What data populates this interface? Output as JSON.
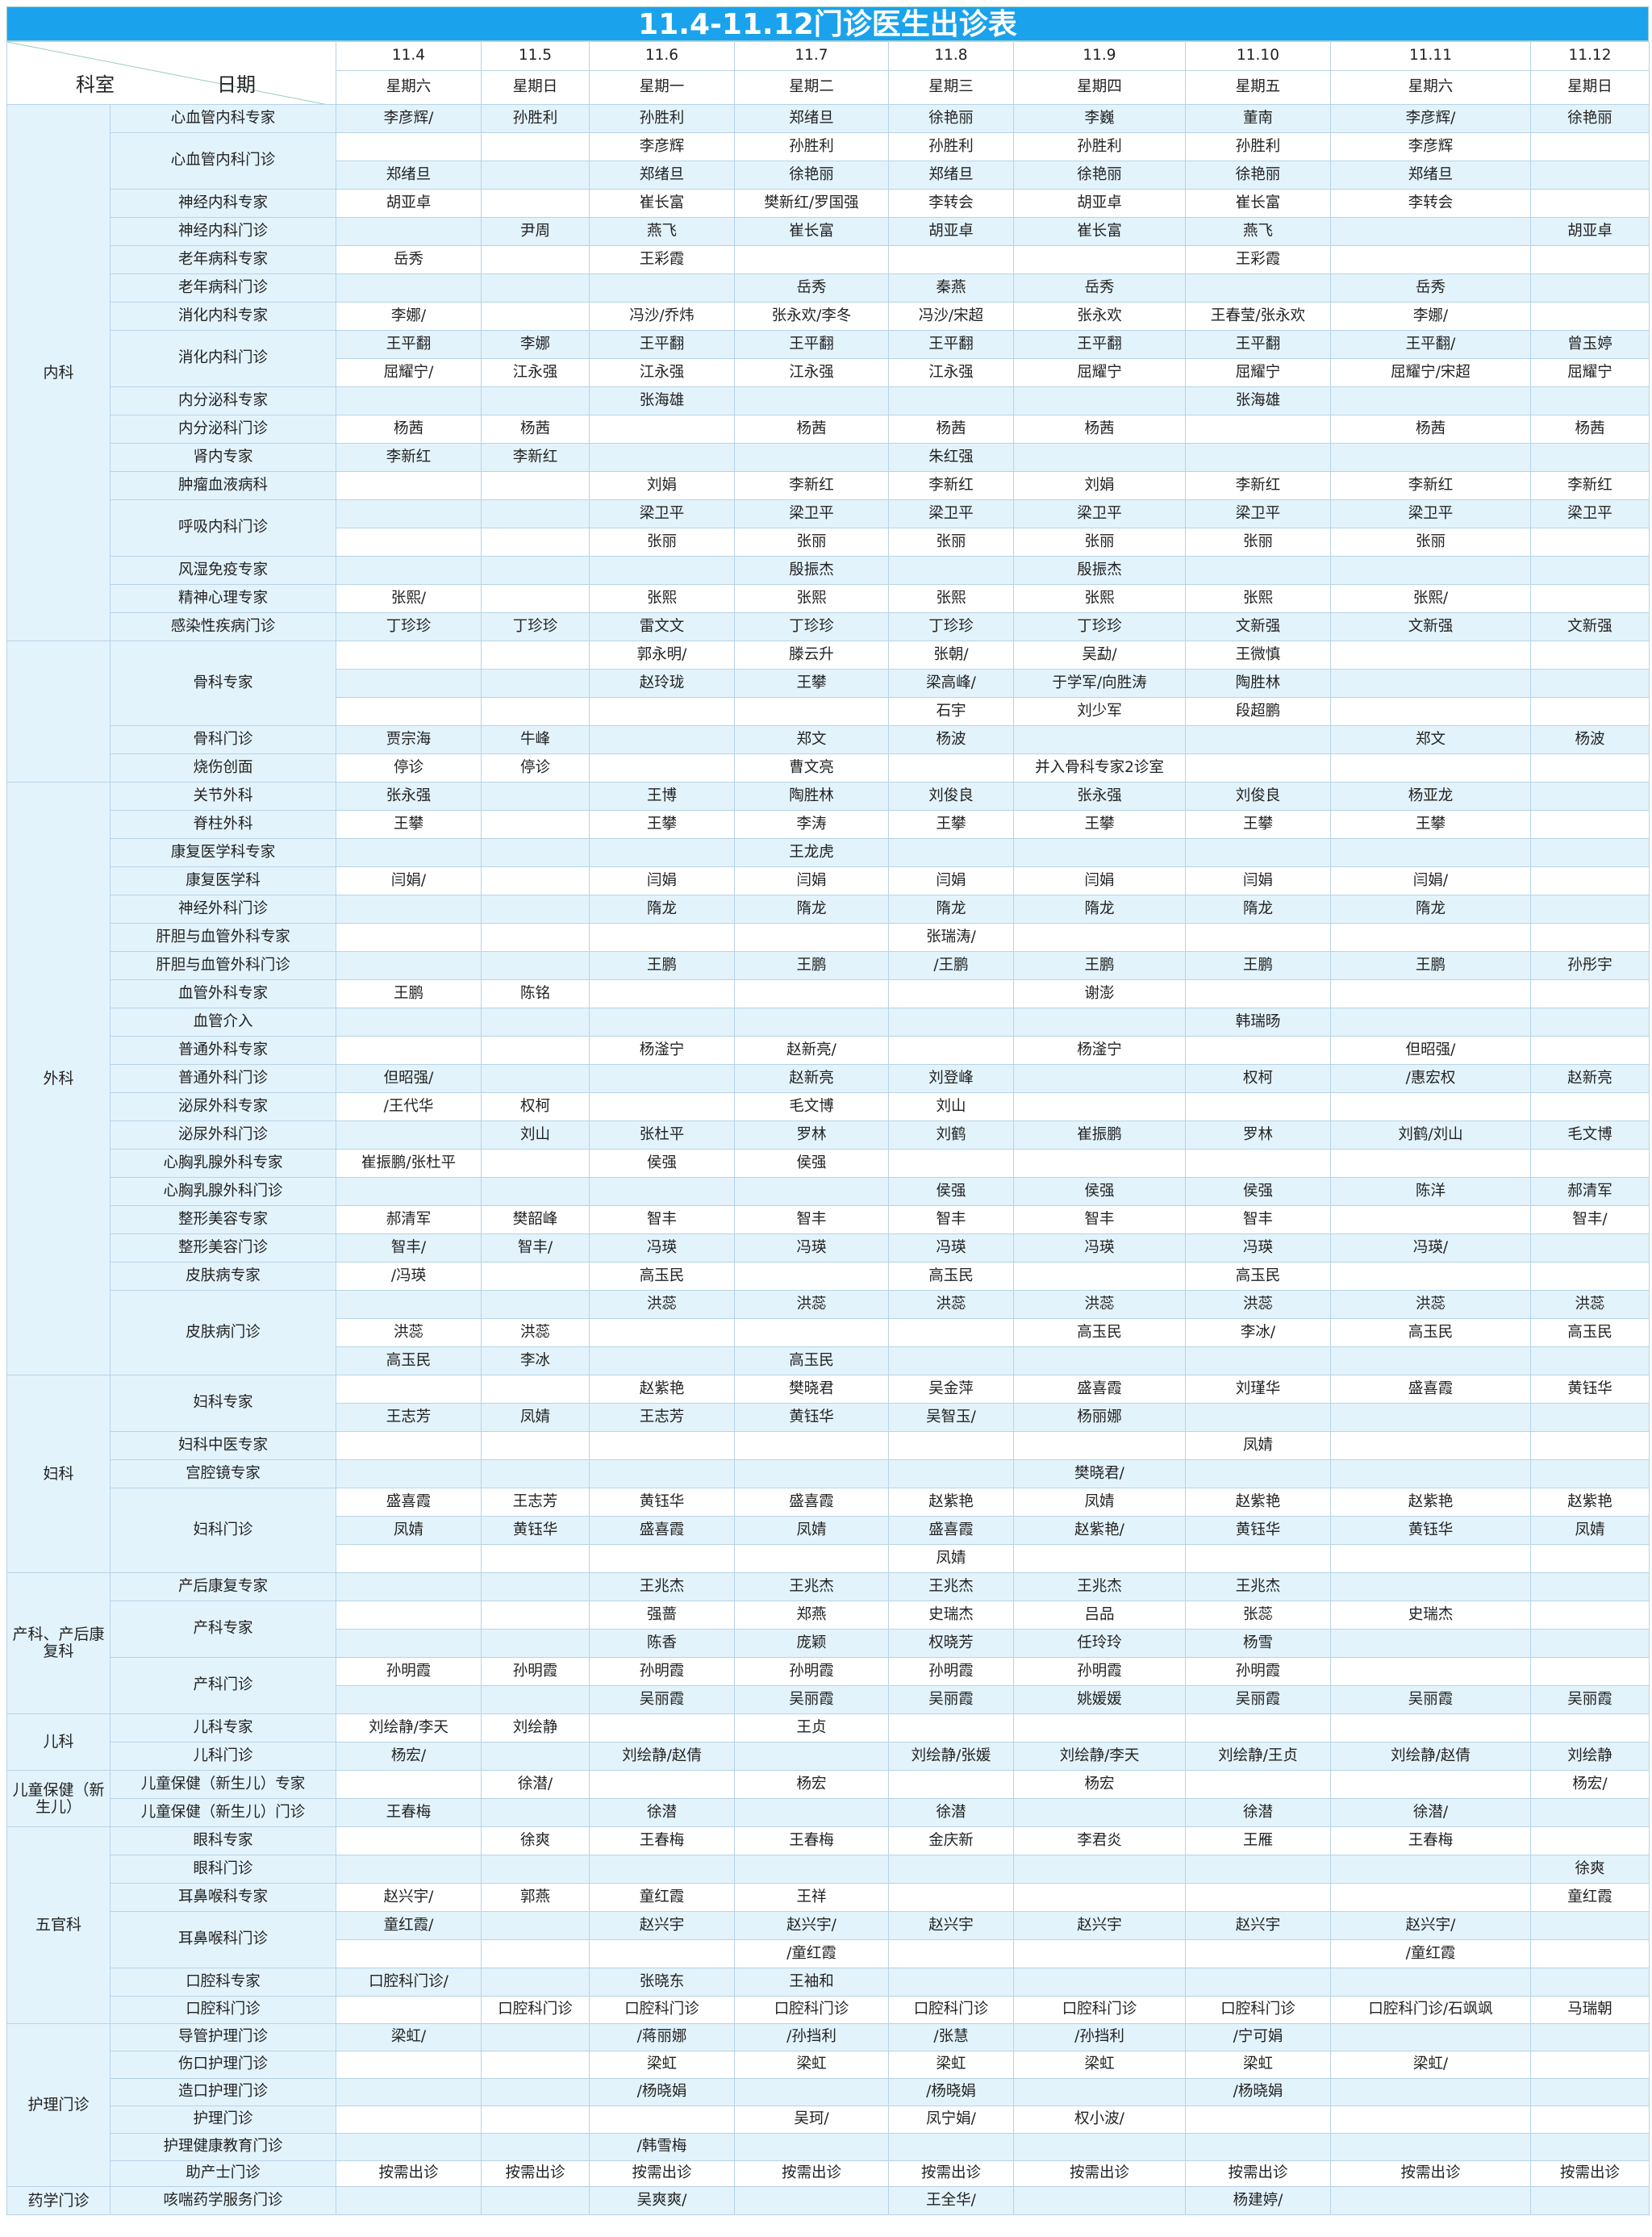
{
  "title": "11.4-11.12门诊医生出诊表",
  "header": {
    "dept_label": "科室",
    "date_label": "日期",
    "dates": [
      "11.4",
      "11.5",
      "11.6",
      "11.7",
      "11.8",
      "11.9",
      "11.10",
      "11.11",
      "11.12"
    ],
    "weekdays": [
      "星期六",
      "星期日",
      "星期一",
      "星期二",
      "星期三",
      "星期四",
      "星期五",
      "星期六",
      "星期日"
    ]
  },
  "groups": [
    {
      "dept": "内科",
      "rows": [
        {
          "sub": "心血管内科专家",
          "cells": [
            "李彦辉/",
            "孙胜利",
            "孙胜利",
            "郑绪旦",
            "徐艳丽",
            "李巍",
            "董南",
            "李彦辉/",
            "徐艳丽"
          ]
        },
        {
          "sub": "心血管内科门诊",
          "span": 2,
          "cells": [
            "",
            "",
            "李彦辉",
            "孙胜利",
            "孙胜利",
            "孙胜利",
            "孙胜利",
            "李彦辉",
            ""
          ]
        },
        {
          "cells": [
            "郑绪旦",
            "",
            "郑绪旦",
            "徐艳丽",
            "郑绪旦",
            "徐艳丽",
            "徐艳丽",
            "郑绪旦",
            ""
          ]
        },
        {
          "sub": "神经内科专家",
          "cells": [
            "胡亚卓",
            "",
            "崔长富",
            "樊新红/罗国强",
            "李转会",
            "胡亚卓",
            "崔长富",
            "李转会",
            ""
          ]
        },
        {
          "sub": "神经内科门诊",
          "cells": [
            "",
            "尹周",
            "燕飞",
            "崔长富",
            "胡亚卓",
            "崔长富",
            "燕飞",
            "",
            "胡亚卓"
          ]
        },
        {
          "sub": "老年病科专家",
          "cells": [
            "岳秀",
            "",
            "王彩霞",
            "",
            "",
            "",
            "王彩霞",
            "",
            ""
          ]
        },
        {
          "sub": "老年病科门诊",
          "cells": [
            "",
            "",
            "",
            "岳秀",
            "秦燕",
            "岳秀",
            "",
            "岳秀",
            ""
          ]
        },
        {
          "sub": "消化内科专家",
          "cells": [
            "李娜/",
            "",
            "冯沙/乔炜",
            "张永欢/李冬",
            "冯沙/宋超",
            "张永欢",
            "王春莹/张永欢",
            "李娜/",
            ""
          ]
        },
        {
          "sub": "消化内科门诊",
          "span": 2,
          "cells": [
            "王平翻",
            "李娜",
            "王平翻",
            "王平翻",
            "王平翻",
            "王平翻",
            "王平翻",
            "王平翻/",
            "曾玉婷"
          ]
        },
        {
          "cells": [
            "屈耀宁/",
            "江永强",
            "江永强",
            "江永强",
            "江永强",
            "屈耀宁",
            "屈耀宁",
            "屈耀宁/宋超",
            "屈耀宁"
          ]
        },
        {
          "sub": "内分泌科专家",
          "cells": [
            "",
            "",
            "张海雄",
            "",
            "",
            "",
            "张海雄",
            "",
            ""
          ]
        },
        {
          "sub": "内分泌科门诊",
          "cells": [
            "杨茜",
            "杨茜",
            "",
            "杨茜",
            "杨茜",
            "杨茜",
            "",
            "杨茜",
            "杨茜"
          ]
        },
        {
          "sub": "肾内专家",
          "cells": [
            "李新红",
            "李新红",
            "",
            "",
            "朱红强",
            "",
            "",
            "",
            ""
          ]
        },
        {
          "sub": "肿瘤血液病科",
          "cells": [
            "",
            "",
            "刘娟",
            "李新红",
            "李新红",
            "刘娟",
            "李新红",
            "李新红",
            "李新红"
          ]
        },
        {
          "sub": "呼吸内科门诊",
          "span": 2,
          "cells": [
            "",
            "",
            "梁卫平",
            "梁卫平",
            "梁卫平",
            "梁卫平",
            "梁卫平",
            "梁卫平",
            "梁卫平"
          ]
        },
        {
          "cells": [
            "",
            "",
            "张丽",
            "张丽",
            "张丽",
            "张丽",
            "张丽",
            "张丽",
            ""
          ]
        },
        {
          "sub": "风湿免疫专家",
          "cells": [
            "",
            "",
            "",
            "殷振杰",
            "",
            "殷振杰",
            "",
            "",
            ""
          ]
        },
        {
          "sub": "精神心理专家",
          "cells": [
            "张熙/",
            "",
            "张熙",
            "张熙",
            "张熙",
            "张熙",
            "张熙",
            "张熙/",
            ""
          ]
        },
        {
          "sub": "感染性疾病门诊",
          "cells": [
            "丁珍珍",
            "丁珍珍",
            "雷文文",
            "丁珍珍",
            "丁珍珍",
            "丁珍珍",
            "文新强",
            "文新强",
            "文新强"
          ]
        }
      ]
    },
    {
      "dept": "",
      "rows": [
        {
          "sub": "骨科专家",
          "span": 3,
          "cells": [
            "",
            "",
            "郭永明/",
            "滕云升",
            "张朝/",
            "吴勐/",
            "王微慎",
            "",
            ""
          ]
        },
        {
          "cells": [
            "",
            "",
            "赵玲珑",
            "王攀",
            "梁高峰/",
            "于学军/向胜涛",
            "陶胜林",
            "",
            ""
          ]
        },
        {
          "cells": [
            "",
            "",
            "",
            "",
            "石宇",
            "刘少军",
            "段超鹏",
            "",
            ""
          ]
        },
        {
          "sub": "骨科门诊",
          "cells": [
            "贾宗海",
            "牛峰",
            "",
            "郑文",
            "杨波",
            "",
            "",
            "郑文",
            "杨波"
          ]
        },
        {
          "sub": "烧伤创面",
          "cells": [
            "停诊",
            "停诊",
            "",
            "曹文亮",
            "",
            "并入骨科专家2诊室",
            "",
            "",
            ""
          ]
        }
      ]
    },
    {
      "dept": "外科",
      "rows": [
        {
          "sub": "关节外科",
          "cells": [
            "张永强",
            "",
            "王博",
            "陶胜林",
            "刘俊良",
            "张永强",
            "刘俊良",
            "杨亚龙",
            ""
          ]
        },
        {
          "sub": "脊柱外科",
          "cells": [
            "王攀",
            "",
            "王攀",
            "李涛",
            "王攀",
            "王攀",
            "王攀",
            "王攀",
            ""
          ]
        },
        {
          "sub": "康复医学科专家",
          "cells": [
            "",
            "",
            "",
            "王龙虎",
            "",
            "",
            "",
            "",
            ""
          ]
        },
        {
          "sub": "康复医学科",
          "cells": [
            "闫娟/",
            "",
            "闫娟",
            "闫娟",
            "闫娟",
            "闫娟",
            "闫娟",
            "闫娟/",
            ""
          ]
        },
        {
          "sub": "神经外科门诊",
          "cells": [
            "",
            "",
            "隋龙",
            "隋龙",
            "隋龙",
            "隋龙",
            "隋龙",
            "隋龙",
            ""
          ]
        },
        {
          "sub": "肝胆与血管外科专家",
          "cells": [
            "",
            "",
            "",
            "",
            "张瑞涛/",
            "",
            "",
            "",
            ""
          ]
        },
        {
          "sub": "肝胆与血管外科门诊",
          "cells": [
            "",
            "",
            "王鹏",
            "王鹏",
            "/王鹏",
            "王鹏",
            "王鹏",
            "王鹏",
            "孙彤宇"
          ]
        },
        {
          "sub": "血管外科专家",
          "cells": [
            "王鹏",
            "陈铭",
            "",
            "",
            "",
            "谢澎",
            "",
            "",
            ""
          ]
        },
        {
          "sub": "血管介入",
          "cells": [
            "",
            "",
            "",
            "",
            "",
            "",
            "韩瑞旸",
            "",
            ""
          ]
        },
        {
          "sub": "普通外科专家",
          "cells": [
            "",
            "",
            "杨滏宁",
            "赵新亮/",
            "",
            "杨滏宁",
            "",
            "但昭强/",
            ""
          ]
        },
        {
          "sub": "普通外科门诊",
          "cells": [
            "但昭强/",
            "",
            "",
            "赵新亮",
            "刘登峰",
            "",
            "权柯",
            "/惠宏权",
            "赵新亮"
          ]
        },
        {
          "sub": "泌尿外科专家",
          "cells": [
            "/王代华",
            "权柯",
            "",
            "毛文博",
            "刘山",
            "",
            "",
            "",
            ""
          ]
        },
        {
          "sub": "泌尿外科门诊",
          "cells": [
            "",
            "刘山",
            "张杜平",
            "罗林",
            "刘鹤",
            "崔振鹏",
            "罗林",
            "刘鹤/刘山",
            "毛文博"
          ]
        },
        {
          "sub": "心胸乳腺外科专家",
          "cells": [
            "崔振鹏/张杜平",
            "",
            "侯强",
            "侯强",
            "",
            "",
            "",
            "",
            ""
          ]
        },
        {
          "sub": "心胸乳腺外科门诊",
          "cells": [
            "",
            "",
            "",
            "",
            "侯强",
            "侯强",
            "侯强",
            "陈洋",
            "郝清军"
          ]
        },
        {
          "sub": "整形美容专家",
          "cells": [
            "郝清军",
            "樊韶峰",
            "智丰",
            "智丰",
            "智丰",
            "智丰",
            "智丰",
            "",
            "智丰/"
          ]
        },
        {
          "sub": "整形美容门诊",
          "cells": [
            "智丰/",
            "智丰/",
            "冯瑛",
            "冯瑛",
            "冯瑛",
            "冯瑛",
            "冯瑛",
            "冯瑛/",
            ""
          ]
        },
        {
          "sub": "皮肤病专家",
          "cells": [
            "/冯瑛",
            "",
            "高玉民",
            "",
            "高玉民",
            "",
            "高玉民",
            "",
            ""
          ]
        },
        {
          "sub": "皮肤病门诊",
          "span": 3,
          "cells": [
            "",
            "",
            "洪蕊",
            "洪蕊",
            "洪蕊",
            "洪蕊",
            "洪蕊",
            "洪蕊",
            "洪蕊"
          ]
        },
        {
          "cells": [
            "洪蕊",
            "洪蕊",
            "",
            "",
            "",
            "高玉民",
            "李冰/",
            "高玉民",
            "高玉民"
          ]
        },
        {
          "cells": [
            "高玉民",
            "李冰",
            "",
            "高玉民",
            "",
            "",
            "",
            "",
            ""
          ]
        }
      ]
    },
    {
      "dept": "妇科",
      "rows": [
        {
          "sub": "妇科专家",
          "span": 2,
          "cells": [
            "",
            "",
            "赵紫艳",
            "樊晓君",
            "吴金萍",
            "盛喜霞",
            "刘瑾华",
            "盛喜霞",
            "黄钰华"
          ]
        },
        {
          "cells": [
            "王志芳",
            "凤婧",
            "王志芳",
            "黄钰华",
            "吴智玉/",
            "杨丽娜",
            "",
            "",
            ""
          ]
        },
        {
          "sub": "妇科中医专家",
          "cells": [
            "",
            "",
            "",
            "",
            "",
            "",
            "凤婧",
            "",
            ""
          ]
        },
        {
          "sub": "宫腔镜专家",
          "cells": [
            "",
            "",
            "",
            "",
            "",
            "樊晓君/",
            "",
            "",
            ""
          ]
        },
        {
          "sub": "妇科门诊",
          "span": 3,
          "cells": [
            "盛喜霞",
            "王志芳",
            "黄钰华",
            "盛喜霞",
            "赵紫艳",
            "凤婧",
            "赵紫艳",
            "赵紫艳",
            "赵紫艳"
          ]
        },
        {
          "cells": [
            "凤婧",
            "黄钰华",
            "盛喜霞",
            "凤婧",
            "盛喜霞",
            "赵紫艳/",
            "黄钰华",
            "黄钰华",
            "凤婧"
          ]
        },
        {
          "cells": [
            "",
            "",
            "",
            "",
            "凤婧",
            "",
            "",
            "",
            ""
          ]
        }
      ]
    },
    {
      "dept": "产科、产后康复科",
      "rows": [
        {
          "sub": "产后康复专家",
          "cells": [
            "",
            "",
            "王兆杰",
            "王兆杰",
            "王兆杰",
            "王兆杰",
            "王兆杰",
            "",
            ""
          ]
        },
        {
          "sub": "产科专家",
          "span": 2,
          "cells": [
            "",
            "",
            "强蔷",
            "郑燕",
            "史瑞杰",
            "吕品",
            "张蕊",
            "史瑞杰",
            ""
          ]
        },
        {
          "cells": [
            "",
            "",
            "陈香",
            "庞颖",
            "权晓芳",
            "任玲玲",
            "杨雪",
            "",
            ""
          ]
        },
        {
          "sub": "产科门诊",
          "span": 2,
          "cells": [
            "孙明霞",
            "孙明霞",
            "孙明霞",
            "孙明霞",
            "孙明霞",
            "孙明霞",
            "孙明霞",
            "",
            ""
          ]
        },
        {
          "cells": [
            "",
            "",
            "吴丽霞",
            "吴丽霞",
            "吴丽霞",
            "姚媛媛",
            "吴丽霞",
            "吴丽霞",
            "吴丽霞"
          ]
        }
      ]
    },
    {
      "dept": "儿科",
      "rows": [
        {
          "sub": "儿科专家",
          "cells": [
            "刘绘静/李天",
            "刘绘静",
            "",
            "王贞",
            "",
            "",
            "",
            "",
            ""
          ]
        },
        {
          "sub": "儿科门诊",
          "cells": [
            "杨宏/",
            "",
            "刘绘静/赵倩",
            "",
            "刘绘静/张媛",
            "刘绘静/李天",
            "刘绘静/王贞",
            "刘绘静/赵倩",
            "刘绘静"
          ]
        }
      ]
    },
    {
      "dept": "儿童保健（新生儿）",
      "rows": [
        {
          "sub": "儿童保健（新生儿）专家",
          "cells": [
            "",
            "徐潜/",
            "",
            "杨宏",
            "",
            "杨宏",
            "",
            "",
            "杨宏/"
          ]
        },
        {
          "sub": "儿童保健（新生儿）门诊",
          "cells": [
            "王春梅",
            "",
            "徐潜",
            "",
            "徐潜",
            "",
            "徐潜",
            "徐潜/",
            ""
          ]
        }
      ]
    },
    {
      "dept": "五官科",
      "rows": [
        {
          "sub": "眼科专家",
          "cells": [
            "",
            "徐爽",
            "王春梅",
            "王春梅",
            "金庆新",
            "李君炎",
            "王雁",
            "王春梅",
            ""
          ]
        },
        {
          "sub": "眼科门诊",
          "cells": [
            "",
            "",
            "",
            "",
            "",
            "",
            "",
            "",
            "徐爽"
          ]
        },
        {
          "sub": "耳鼻喉科专家",
          "cells": [
            "赵兴宇/",
            "郭燕",
            "童红霞",
            "王祥",
            "",
            "",
            "",
            "",
            "童红霞"
          ]
        },
        {
          "sub": "耳鼻喉科门诊",
          "span": 2,
          "cells": [
            "童红霞/",
            "",
            "赵兴宇",
            "赵兴宇/",
            "赵兴宇",
            "赵兴宇",
            "赵兴宇",
            "赵兴宇/",
            ""
          ]
        },
        {
          "cells": [
            "",
            "",
            "",
            "/童红霞",
            "",
            "",
            "",
            "/童红霞",
            ""
          ]
        },
        {
          "sub": "口腔科专家",
          "cells": [
            "口腔科门诊/",
            "",
            "张晓东",
            "王袖和",
            "",
            "",
            "",
            "",
            ""
          ]
        },
        {
          "sub": "口腔科门诊",
          "cells": [
            "",
            "口腔科门诊",
            "口腔科门诊",
            "口腔科门诊",
            "口腔科门诊",
            "口腔科门诊",
            "口腔科门诊",
            "口腔科门诊/石飒飒",
            "马瑞朝"
          ]
        }
      ]
    },
    {
      "dept": "护理门诊",
      "rows": [
        {
          "sub": "导管护理门诊",
          "cells": [
            "梁虹/",
            "",
            "/蒋丽娜",
            "/孙挡利",
            "/张慧",
            "/孙挡利",
            "/宁可娟",
            "",
            ""
          ]
        },
        {
          "sub": "伤口护理门诊",
          "cells": [
            "",
            "",
            "梁虹",
            "梁虹",
            "梁虹",
            "梁虹",
            "梁虹",
            "梁虹/",
            ""
          ]
        },
        {
          "sub": "造口护理门诊",
          "cells": [
            "",
            "",
            "/杨晓娟",
            "",
            "/杨晓娟",
            "",
            "/杨晓娟",
            "",
            ""
          ]
        },
        {
          "sub": "护理门诊",
          "cells": [
            "",
            "",
            "",
            "吴珂/",
            "凤宁娟/",
            "权小波/",
            "",
            "",
            ""
          ]
        },
        {
          "sub": "护理健康教育门诊",
          "cells": [
            "",
            "",
            "/韩雪梅",
            "",
            "",
            "",
            "",
            "",
            ""
          ]
        },
        {
          "sub": "助产士门诊",
          "cells": [
            "按需出诊",
            "按需出诊",
            "按需出诊",
            "按需出诊",
            "按需出诊",
            "按需出诊",
            "按需出诊",
            "按需出诊",
            "按需出诊"
          ]
        }
      ]
    },
    {
      "dept": "药学门诊",
      "rows": [
        {
          "sub": "咳喘药学服务门诊",
          "cells": [
            "",
            "",
            "吴爽爽/",
            "",
            "王全华/",
            "",
            "杨建婷/",
            "",
            ""
          ]
        }
      ]
    }
  ]
}
